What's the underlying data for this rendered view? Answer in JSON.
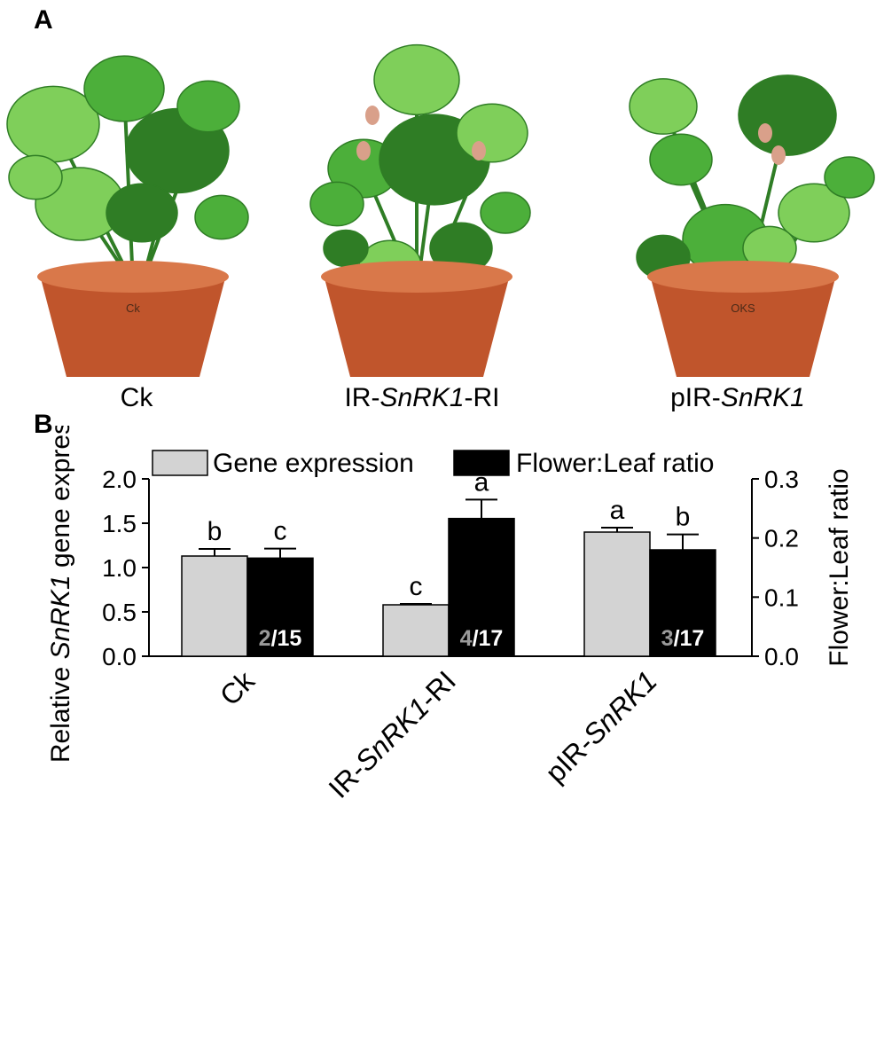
{
  "panel_a": {
    "letter": "A",
    "photos": [
      {
        "label_pre": "Ck",
        "label_italic": "",
        "label_post": "",
        "pot_marking": "Ck"
      },
      {
        "label_pre": "IR-",
        "label_italic": "SnRK1",
        "label_post": "-RI",
        "pot_marking": ""
      },
      {
        "label_pre": "pIR-",
        "label_italic": "SnRK1",
        "label_post": "",
        "pot_marking": "OKS"
      }
    ],
    "colors": {
      "leaf": "#4caf3a",
      "leaf_dark": "#2f7d25",
      "leaf_light": "#7fcf5a",
      "pot": "#c0552c",
      "pot_rim": "#d9784a",
      "bud": "#d9a08a"
    }
  },
  "panel_b": {
    "letter": "B"
  },
  "chart_data": {
    "type": "bar",
    "categories": [
      {
        "pre": "Ck",
        "italic": "",
        "post": ""
      },
      {
        "pre": "IR-",
        "italic": "SnRK1",
        "post": "-RI"
      },
      {
        "pre": "pIR-",
        "italic": "SnRK1",
        "post": ""
      }
    ],
    "series": [
      {
        "name": "Gene expression",
        "axis": "left",
        "color": "#d3d3d3",
        "values": [
          1.13,
          0.58,
          1.4
        ],
        "errors": [
          0.08,
          0.01,
          0.05
        ],
        "letters": [
          "b",
          "c",
          "a"
        ]
      },
      {
        "name": "Flower:Leaf ratio",
        "axis": "right",
        "color": "#000000",
        "values": [
          0.166,
          0.233,
          0.18
        ],
        "errors": [
          0.016,
          0.032,
          0.026
        ],
        "letters": [
          "c",
          "a",
          "b"
        ]
      }
    ],
    "counts": [
      {
        "numerator": "2",
        "denominator": "/15"
      },
      {
        "numerator": "4",
        "denominator": "/17"
      },
      {
        "numerator": "3",
        "denominator": "/17"
      }
    ],
    "left_axis": {
      "label_pre": "Relative ",
      "label_italic": "SnRK1",
      "label_post": " gene expression",
      "ylim": [
        0,
        2.0
      ],
      "ticks": [
        "0.0",
        "0.5",
        "1.0",
        "1.5",
        "2.0"
      ]
    },
    "right_axis": {
      "label": "Flower:Leaf ratio",
      "ylim": [
        0,
        0.3
      ],
      "ticks": [
        "0.0",
        "0.1",
        "0.2",
        "0.3"
      ]
    },
    "legend_placement": "top",
    "grid": false
  }
}
